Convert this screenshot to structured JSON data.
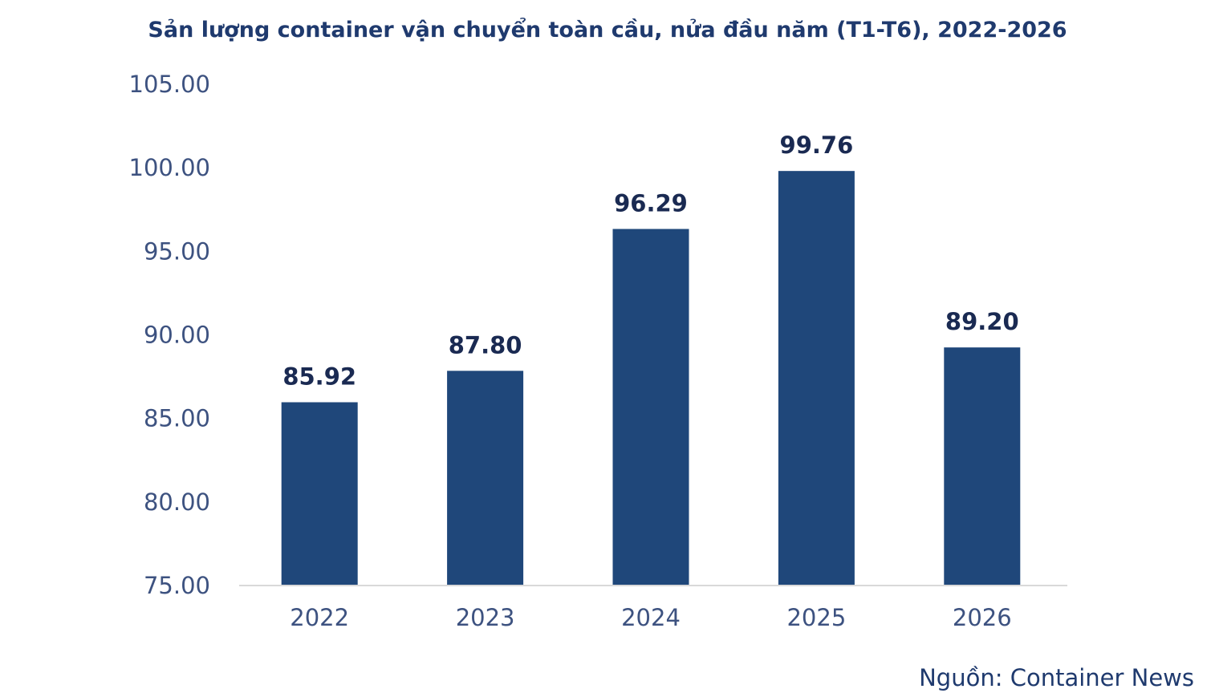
{
  "chart_data": {
    "type": "bar",
    "title": "Sản lượng container vận chuyển toàn cầu, nửa đầu năm (T1-T6), 2022-2026",
    "categories": [
      "2022",
      "2023",
      "2024",
      "2025",
      "2026"
    ],
    "values": [
      85.92,
      87.8,
      96.29,
      99.76,
      89.2
    ],
    "data_labels": [
      "85.92",
      "87.80",
      "96.29",
      "99.76",
      "89.20"
    ],
    "xlabel": "",
    "ylabel": "",
    "ylim": [
      75,
      105
    ],
    "yticks": [
      "75.00",
      "80.00",
      "85.00",
      "90.00",
      "95.00",
      "100.00",
      "105.00"
    ],
    "ytick_values": [
      75,
      80,
      85,
      90,
      95,
      100,
      105
    ],
    "grid": false,
    "legend": "none",
    "source": "Nguồn: Container News",
    "colors": {
      "bar": "#1f477a",
      "title": "#1f3a6e",
      "axis_text": "#3d5280",
      "data_label": "#1a2a52",
      "baseline": "#d9d9d9"
    }
  }
}
